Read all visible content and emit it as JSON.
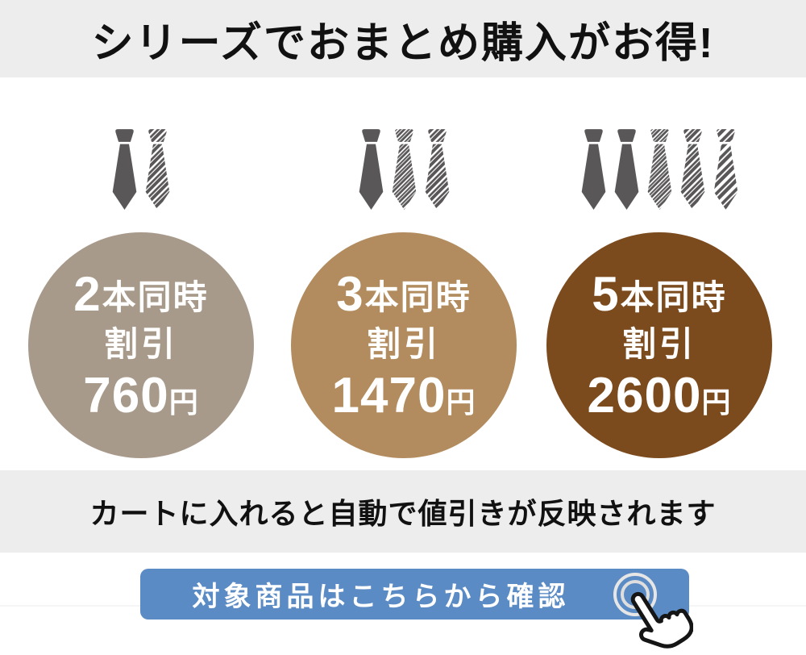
{
  "header": {
    "title": "シリーズでおまとめ購入がお得!"
  },
  "offers": [
    {
      "count": "2",
      "count_suffix": "本同時",
      "discount_label": "割引",
      "price": "760",
      "price_unit": "円",
      "circle_color": "#a89a8a",
      "ties": [
        "solid",
        "stripe-m"
      ]
    },
    {
      "count": "3",
      "count_suffix": "本同時",
      "discount_label": "割引",
      "price": "1470",
      "price_unit": "円",
      "circle_color": "#b28c5e",
      "ties": [
        "solid",
        "stripe-f",
        "stripe-m"
      ]
    },
    {
      "count": "5",
      "count_suffix": "本同時",
      "discount_label": "割引",
      "price": "2600",
      "price_unit": "円",
      "circle_color": "#7b4a1d",
      "ties": [
        "solid",
        "solid",
        "stripe-f",
        "stripe-m",
        "stripe-w"
      ]
    }
  ],
  "note": {
    "text": "カートに入れると自動で値引きが反映されます"
  },
  "cta": {
    "label": "対象商品はこちらから確認",
    "icon": "tap-hand-icon",
    "background": "#5b8bc4",
    "text_color": "#ffffff"
  },
  "colors": {
    "band_bg": "#ededed",
    "page_bg": "#ffffff",
    "title_text": "#111111",
    "circle_text": "#ffffff",
    "tie": "#595757"
  }
}
